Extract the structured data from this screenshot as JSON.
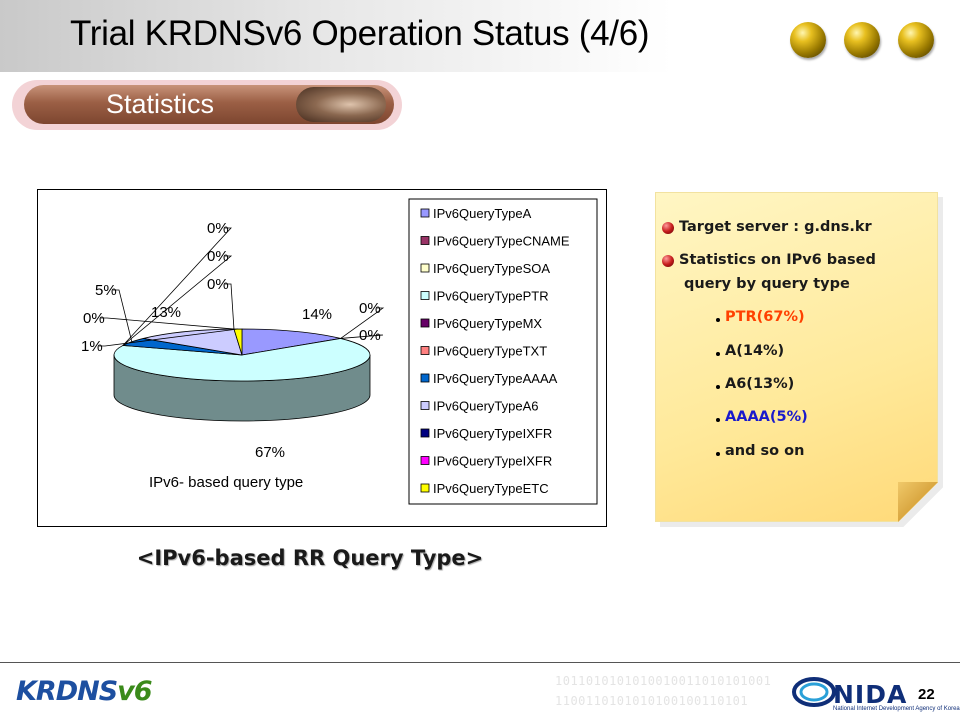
{
  "slide": {
    "title": "Trial KRDNSv6 Operation Status (4/6)",
    "section_label": "Statistics",
    "caption": "<IPv6-based RR Query Type>",
    "page_number": "22"
  },
  "note": {
    "items": [
      {
        "text": "Target server : g.dns.kr"
      },
      {
        "text": "Statistics on IPv6 based",
        "text2": "query by query type"
      }
    ],
    "subitems": [
      {
        "text": "PTR(67%)",
        "color": "#ff4000"
      },
      {
        "text": "A(14%)",
        "color": "#1a1a1a"
      },
      {
        "text": "A6(13%)",
        "color": "#1a1a1a"
      },
      {
        "text": "AAAA(5%)",
        "color": "#1a1acc"
      },
      {
        "text": "and so on",
        "color": "#1a1a1a"
      }
    ]
  },
  "chart_data": {
    "type": "pie",
    "title": "IPv6- based query type",
    "slices": [
      {
        "name": "IPv6QueryTypeA",
        "value": 14,
        "label": "14%",
        "color": "#9999ff"
      },
      {
        "name": "IPv6QueryTypeCNAME",
        "value": 0,
        "label": "0%",
        "color": "#993366"
      },
      {
        "name": "IPv6QueryTypeSOA",
        "value": 0,
        "label": "0%",
        "color": "#ffffcc"
      },
      {
        "name": "IPv6QueryTypePTR",
        "value": 67,
        "label": "67%",
        "color": "#ccffff"
      },
      {
        "name": "IPv6QueryTypeMX",
        "value": 0,
        "label": "0%",
        "color": "#660066"
      },
      {
        "name": "IPv6QueryTypeTXT",
        "value": 0,
        "label": "0%",
        "color": "#ff8080"
      },
      {
        "name": "IPv6QueryTypeAAAA",
        "value": 5,
        "label": "5%",
        "color": "#0066cc"
      },
      {
        "name": "IPv6QueryTypeA6",
        "value": 13,
        "label": "13%",
        "color": "#ccccff"
      },
      {
        "name": "IPv6QueryTypeIXFR",
        "value": 0,
        "label": "0%",
        "color": "#000080"
      },
      {
        "name": "IPv6QueryTypeIXFR",
        "value": 0,
        "label": "0%",
        "color": "#ff00ff"
      },
      {
        "name": "IPv6QueryTypeETC",
        "value": 1,
        "label": "1%",
        "color": "#ffff00"
      }
    ],
    "legend_position": "right"
  },
  "footer": {
    "logo_text": "KRDNS",
    "logo_version": "v6",
    "binary_line1": "1011010101010010011010101001",
    "binary_line2": "1100110101010100100110101",
    "org": "NIDA",
    "org_sub": "National Internet Development Agency of Korea"
  }
}
